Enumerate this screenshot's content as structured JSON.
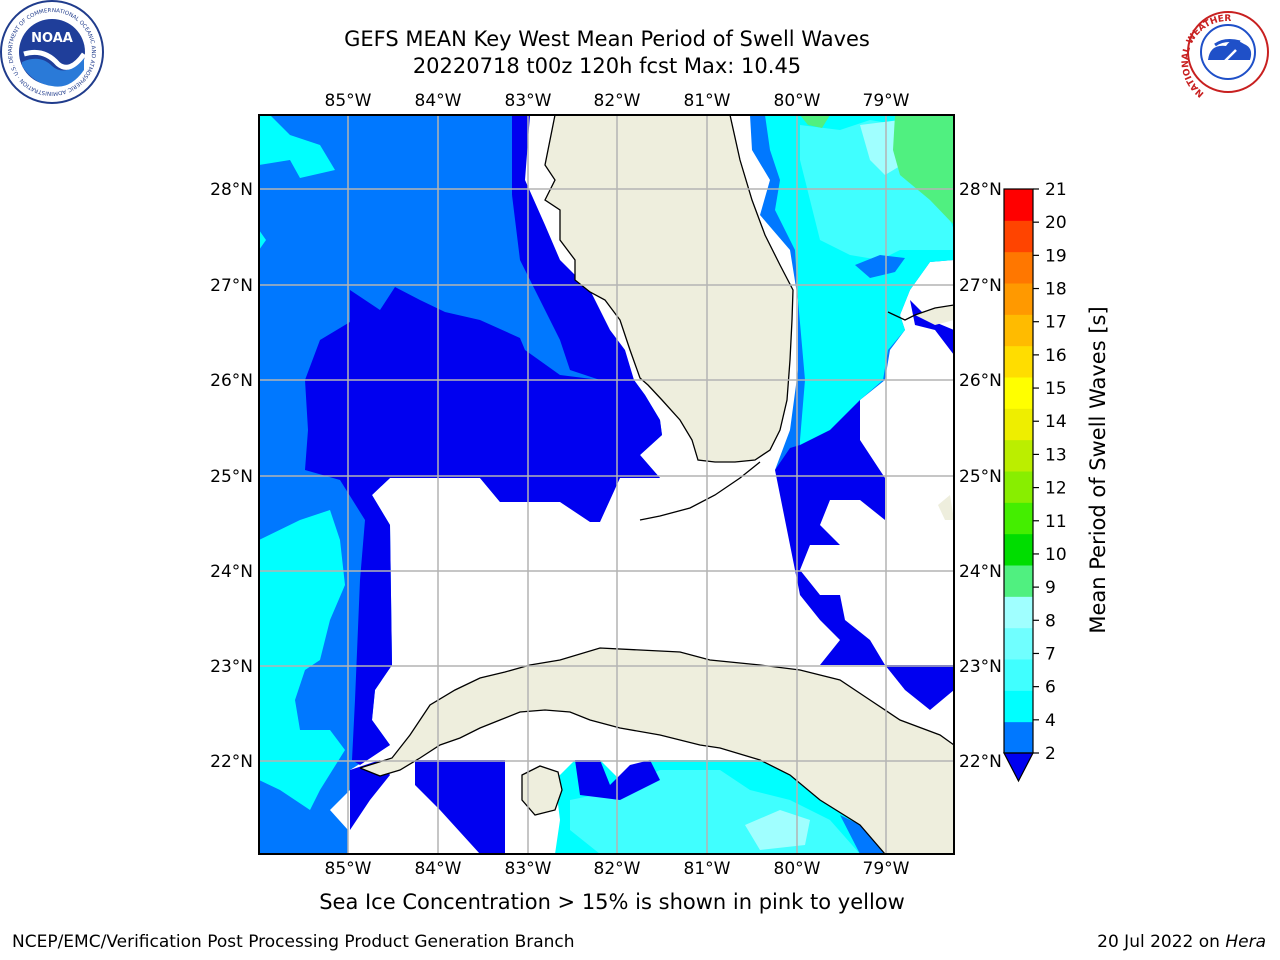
{
  "header": {
    "title_line1": "GEFS MEAN Key West Mean Period of Swell Waves",
    "title_line2": "20220718 t00z 120h fcst   Max: 10.45"
  },
  "logos": {
    "left": {
      "text": "NOAA",
      "icon": "noaa-logo-icon",
      "ring_text": "NATIONAL OCEANIC AND ATMOSPHERIC ADMINISTRATION · U.S. DEPARTMENT OF COMMERCE"
    },
    "right": {
      "icon": "nws-logo-icon",
      "ring_text": "NATIONAL WEATHER SERVICE"
    }
  },
  "map": {
    "lon_labels": [
      "85°W",
      "84°W",
      "83°W",
      "82°W",
      "81°W",
      "80°W",
      "79°W"
    ],
    "lat_labels": [
      "28°N",
      "27°N",
      "26°N",
      "25°N",
      "24°N",
      "23°N",
      "22°N"
    ],
    "colors": {
      "land": "#eeeedd",
      "grid": "#b4b4b4",
      "level_2_4": "#0078ff",
      "level_below_2": "#0000f0",
      "level_4_6": "#00ffff",
      "level_6_8": "#40ffff",
      "level_8_9": "#a0ffff",
      "level_9_10": "#50f080"
    }
  },
  "colorbar": {
    "label": "Mean Period of Swell Waves [s]",
    "ticks": [
      "2",
      "4",
      "6",
      "7",
      "8",
      "9",
      "10",
      "11",
      "12",
      "13",
      "14",
      "15",
      "16",
      "17",
      "18",
      "19",
      "20",
      "21"
    ],
    "colors": [
      "#0078ff",
      "#00ffff",
      "#40ffff",
      "#70ffff",
      "#a0ffff",
      "#50f080",
      "#00dd00",
      "#44ee00",
      "#88ee00",
      "#bbee00",
      "#eeee00",
      "#ffff00",
      "#ffdd00",
      "#ffbb00",
      "#ff9900",
      "#ff7700",
      "#ff4400",
      "#ff0000"
    ],
    "under_color": "#0000f0"
  },
  "caption": "Sea Ice Concentration > 15% is shown in pink to yellow",
  "footer": {
    "left": "NCEP/EMC/Verification Post Processing Product Generation Branch",
    "right_prefix": "20 Jul 2022 on ",
    "right_host": "Hera"
  }
}
